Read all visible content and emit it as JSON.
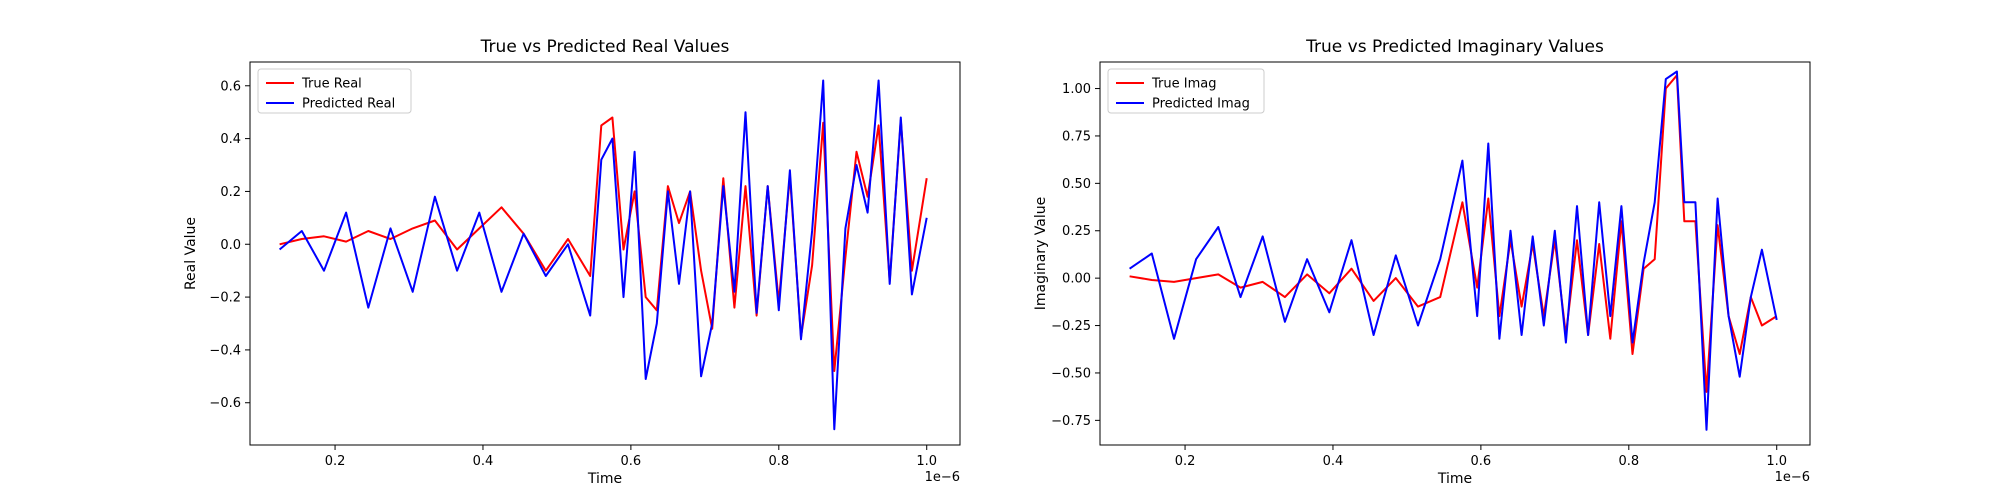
{
  "chart_data": [
    {
      "type": "line",
      "title": "True vs Predicted Real Values",
      "xlabel": "Time",
      "ylabel": "Real Value",
      "x_offset_label": "1e−6",
      "xlim": [
        0.085,
        1.045
      ],
      "ylim": [
        -0.76,
        0.69
      ],
      "xticks": [
        0.2,
        0.4,
        0.6,
        0.8,
        1.0
      ],
      "xtick_labels": [
        "0.2",
        "0.4",
        "0.6",
        "0.8",
        "1.0"
      ],
      "yticks": [
        -0.6,
        -0.4,
        -0.2,
        0.0,
        0.2,
        0.4,
        0.6
      ],
      "ytick_labels": [
        "−0.6",
        "−0.4",
        "−0.2",
        "0.0",
        "0.2",
        "0.4",
        "0.6"
      ],
      "grid": false,
      "legend_position": "upper-left",
      "x": [
        0.125,
        0.155,
        0.185,
        0.215,
        0.245,
        0.275,
        0.305,
        0.335,
        0.365,
        0.395,
        0.425,
        0.455,
        0.485,
        0.515,
        0.545,
        0.56,
        0.575,
        0.59,
        0.605,
        0.62,
        0.635,
        0.65,
        0.665,
        0.68,
        0.695,
        0.71,
        0.725,
        0.74,
        0.755,
        0.77,
        0.785,
        0.8,
        0.815,
        0.83,
        0.845,
        0.86,
        0.875,
        0.89,
        0.905,
        0.92,
        0.935,
        0.95,
        0.965,
        0.98,
        1.0
      ],
      "series": [
        {
          "name": "True Real",
          "color": "#ff0000",
          "values": [
            0.0,
            0.02,
            0.03,
            0.01,
            0.05,
            0.02,
            0.06,
            0.09,
            -0.02,
            0.06,
            0.14,
            0.04,
            -0.1,
            0.02,
            -0.12,
            0.45,
            0.48,
            -0.02,
            0.2,
            -0.2,
            -0.25,
            0.22,
            0.08,
            0.2,
            -0.1,
            -0.32,
            0.25,
            -0.24,
            0.22,
            -0.27,
            0.22,
            -0.22,
            0.26,
            -0.35,
            -0.08,
            0.46,
            -0.48,
            -0.05,
            0.35,
            0.18,
            0.45,
            -0.14,
            0.47,
            -0.1,
            0.25
          ]
        },
        {
          "name": "Predicted Real",
          "color": "#0000ff",
          "values": [
            -0.02,
            0.05,
            -0.1,
            0.12,
            -0.24,
            0.06,
            -0.18,
            0.18,
            -0.1,
            0.12,
            -0.18,
            0.04,
            -0.12,
            0.0,
            -0.27,
            0.32,
            0.4,
            -0.2,
            0.35,
            -0.51,
            -0.3,
            0.2,
            -0.15,
            0.2,
            -0.5,
            -0.3,
            0.22,
            -0.18,
            0.5,
            -0.26,
            0.22,
            -0.25,
            0.28,
            -0.36,
            0.05,
            0.62,
            -0.7,
            0.06,
            0.3,
            0.12,
            0.62,
            -0.15,
            0.48,
            -0.19,
            0.1
          ]
        }
      ]
    },
    {
      "type": "line",
      "title": "True vs Predicted Imaginary Values",
      "xlabel": "Time",
      "ylabel": "Imaginary Value",
      "x_offset_label": "1e−6",
      "xlim": [
        0.085,
        1.045
      ],
      "ylim": [
        -0.88,
        1.14
      ],
      "xticks": [
        0.2,
        0.4,
        0.6,
        0.8,
        1.0
      ],
      "xtick_labels": [
        "0.2",
        "0.4",
        "0.6",
        "0.8",
        "1.0"
      ],
      "yticks": [
        -0.75,
        -0.5,
        -0.25,
        0.0,
        0.25,
        0.5,
        0.75,
        1.0
      ],
      "ytick_labels": [
        "−0.75",
        "−0.50",
        "−0.25",
        "0.00",
        "0.25",
        "0.50",
        "0.75",
        "1.00"
      ],
      "grid": false,
      "legend_position": "upper-left",
      "x": [
        0.125,
        0.155,
        0.185,
        0.215,
        0.245,
        0.275,
        0.305,
        0.335,
        0.365,
        0.395,
        0.425,
        0.455,
        0.485,
        0.515,
        0.545,
        0.575,
        0.595,
        0.61,
        0.625,
        0.64,
        0.655,
        0.67,
        0.685,
        0.7,
        0.715,
        0.73,
        0.745,
        0.76,
        0.775,
        0.79,
        0.805,
        0.82,
        0.835,
        0.85,
        0.865,
        0.875,
        0.89,
        0.905,
        0.92,
        0.935,
        0.95,
        0.965,
        0.98,
        1.0
      ],
      "series": [
        {
          "name": "True Imag",
          "color": "#ff0000",
          "values": [
            0.01,
            -0.01,
            -0.02,
            0.0,
            0.02,
            -0.05,
            -0.02,
            -0.1,
            0.02,
            -0.08,
            0.05,
            -0.12,
            0.0,
            -0.15,
            -0.1,
            0.4,
            -0.05,
            0.42,
            -0.2,
            0.2,
            -0.15,
            0.18,
            -0.2,
            0.2,
            -0.3,
            0.2,
            -0.3,
            0.18,
            -0.32,
            0.3,
            -0.4,
            0.05,
            0.1,
            1.0,
            1.07,
            0.3,
            0.3,
            -0.6,
            0.28,
            -0.2,
            -0.4,
            -0.1,
            -0.25,
            -0.2
          ]
        },
        {
          "name": "Predicted Imag",
          "color": "#0000ff",
          "values": [
            0.05,
            0.13,
            -0.32,
            0.1,
            0.27,
            -0.1,
            0.22,
            -0.23,
            0.1,
            -0.18,
            0.2,
            -0.3,
            0.12,
            -0.25,
            0.1,
            0.62,
            -0.2,
            0.71,
            -0.32,
            0.25,
            -0.3,
            0.22,
            -0.25,
            0.25,
            -0.34,
            0.38,
            -0.3,
            0.4,
            -0.2,
            0.38,
            -0.34,
            0.08,
            0.4,
            1.05,
            1.09,
            0.4,
            0.4,
            -0.8,
            0.42,
            -0.2,
            -0.52,
            -0.1,
            0.15,
            -0.22
          ]
        }
      ]
    }
  ]
}
